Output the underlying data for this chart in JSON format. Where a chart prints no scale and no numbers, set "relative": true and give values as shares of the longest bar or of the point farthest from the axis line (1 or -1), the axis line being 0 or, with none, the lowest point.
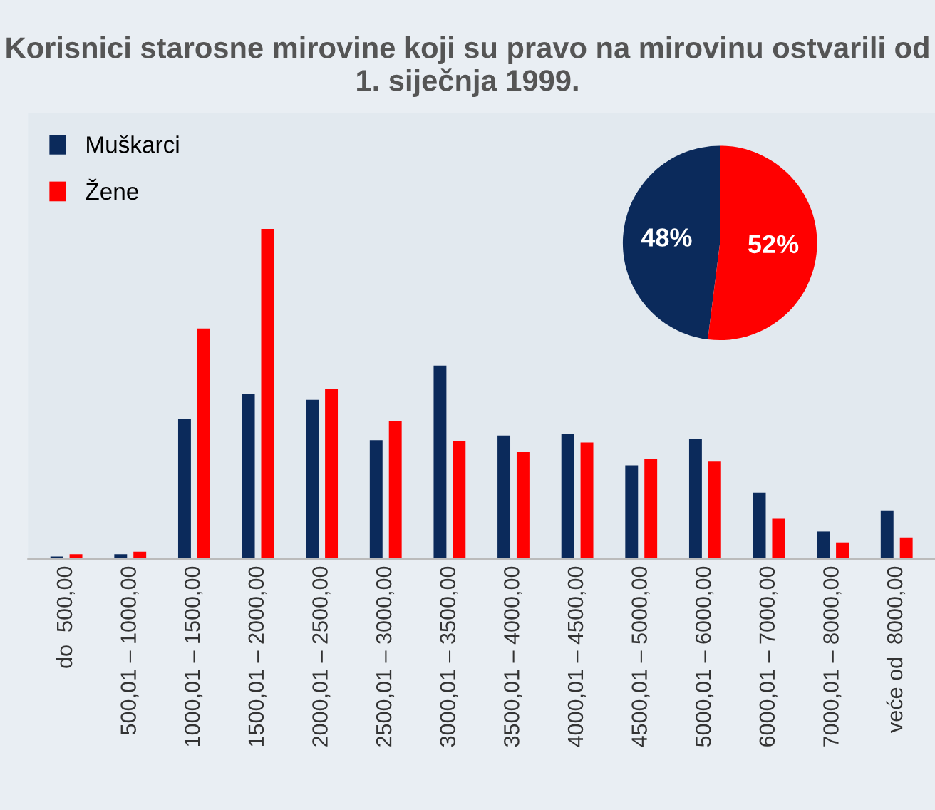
{
  "chart_data": [
    {
      "type": "bar",
      "title": "Korisnici starosne mirovine koji su pravo na mirovinu ostvarili od 1. siječnja 1999.",
      "relative": true,
      "legend": "top left",
      "categories": [
        "do  500,00",
        "500,01 – 1000,00",
        "1000,01 – 1500,00",
        "1500,01 – 2000,00",
        "2000,01 – 2500,00",
        "2500,01 – 3000,00",
        "3000,01 – 3500,00",
        "3500,01 – 4000,00",
        "4000,01 – 4500,00",
        "4500,01 – 5000,00",
        "5000,01 – 6000,00",
        "6000,01 – 7000,00",
        "7000,01 – 8000,00",
        "veće od  8000,00"
      ],
      "series": [
        {
          "name": "Muškarci",
          "color": "#0b2a5b",
          "values": [
            0.007,
            0.014,
            0.424,
            0.5,
            0.482,
            0.36,
            0.586,
            0.374,
            0.378,
            0.284,
            0.363,
            0.201,
            0.083,
            0.147
          ]
        },
        {
          "name": "Žene",
          "color": "#ff0000",
          "values": [
            0.014,
            0.022,
            0.698,
            1,
            0.514,
            0.417,
            0.356,
            0.324,
            0.353,
            0.302,
            0.295,
            0.122,
            0.05,
            0.065
          ]
        }
      ]
    },
    {
      "type": "pie",
      "categories": [
        null,
        null
      ],
      "values": [
        48,
        52
      ],
      "colors": [
        "#0b2a5b",
        "#ff0000"
      ],
      "value_labels": [
        "48%",
        "52%"
      ]
    }
  ]
}
